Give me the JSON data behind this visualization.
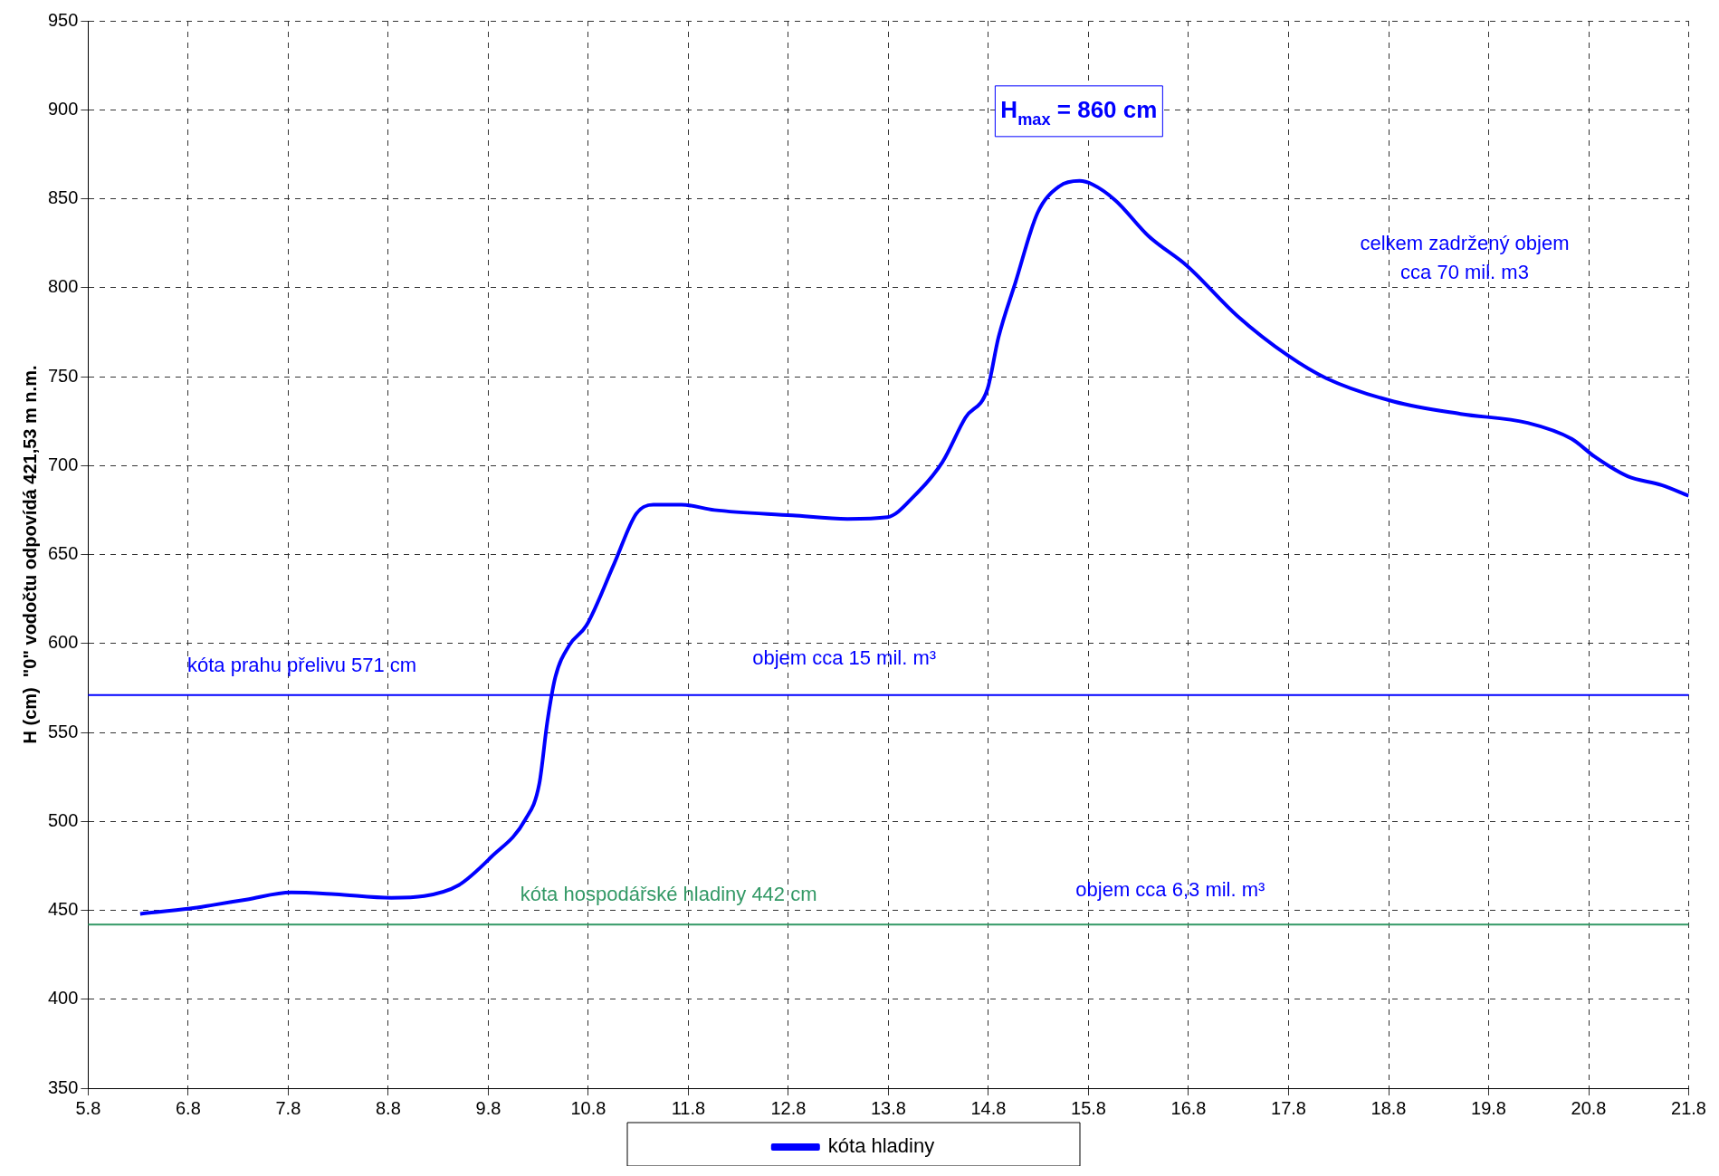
{
  "chart_data": {
    "type": "line",
    "ylabel": "H (cm)  \"0\" vodočtu odpovídá 421,53 m n.m.",
    "x": [
      "--08-05T12:29",
      "--08-06T00:29",
      "--08-06T06:00",
      "--08-06T13:55",
      "--08-07T00:43",
      "--08-07T11:17",
      "--08-08T00:43",
      "--08-08T08:38",
      "--08-08T16:48",
      "--08-09T00:43",
      "--08-09T08:53",
      "--08-09T12:14",
      "--08-09T14:10",
      "--08-09T16:05",
      "--08-09T19:26",
      "--08-09T23:31",
      "--08-10T06:14",
      "--08-10T11:31",
      "--08-10T15:36",
      "--08-10T22:19",
      "--08-11T06:14",
      "--08-12T00:58",
      "--08-12T14:10",
      "--08-12T23:46",
      "--08-13T06:14",
      "--08-13T12:58",
      "--08-13T18:29",
      "--08-13T23:46",
      "--08-14T02:24",
      "--08-14T06:29",
      "--08-14T11:46",
      "--08-14T17:02",
      "--08-14T21:50",
      "--08-15T00:58",
      "--08-15T06:29",
      "--08-15T14:24",
      "--08-15T23:46",
      "--08-16T11:46",
      "--08-16T23:46",
      "--08-17T09:07",
      "--08-18T01:12",
      "--08-18T17:17",
      "--08-19T09:22",
      "--08-19T19:55",
      "--08-20T01:26",
      "--08-20T09:22",
      "--08-20T17:31",
      "--08-21"
    ],
    "series": [
      {
        "name": "kóta hladiny",
        "color": "#0000ff",
        "values": [
          448,
          451,
          453,
          456,
          460,
          459,
          457,
          458,
          464,
          480,
          501,
          521,
          556,
          581,
          599,
          610,
          645,
          673,
          678,
          678,
          675,
          672,
          670,
          671,
          683,
          702,
          727,
          743,
          772,
          803,
          842,
          857,
          860,
          858,
          849,
          829,
          812,
          784,
          762,
          749,
          736,
          729,
          724,
          715,
          705,
          694,
          689,
          683
        ]
      }
    ],
    "xlim": [
      "--08-05",
      "--08-21"
    ],
    "xticks": [
      {
        "value": "--08-05",
        "label": "5.8"
      },
      {
        "value": "--08-06",
        "label": "6.8"
      },
      {
        "value": "--08-07",
        "label": "7.8"
      },
      {
        "value": "--08-08",
        "label": "8.8"
      },
      {
        "value": "--08-09",
        "label": "9.8"
      },
      {
        "value": "--08-10",
        "label": "10.8"
      },
      {
        "value": "--08-11",
        "label": "11.8"
      },
      {
        "value": "--08-12",
        "label": "12.8"
      },
      {
        "value": "--08-13",
        "label": "13.8"
      },
      {
        "value": "--08-14",
        "label": "14.8"
      },
      {
        "value": "--08-15",
        "label": "15.8"
      },
      {
        "value": "--08-16",
        "label": "16.8"
      },
      {
        "value": "--08-17",
        "label": "17.8"
      },
      {
        "value": "--08-18",
        "label": "18.8"
      },
      {
        "value": "--08-19",
        "label": "19.8"
      },
      {
        "value": "--08-20",
        "label": "20.8"
      },
      {
        "value": "--08-21",
        "label": "21.8"
      }
    ],
    "ylim": [
      350,
      950
    ],
    "yticks": [
      350,
      400,
      450,
      500,
      550,
      600,
      650,
      700,
      750,
      800,
      850,
      900,
      950
    ],
    "ref_lines": [
      {
        "axis": "y",
        "value": 571,
        "label": "kóta prahu přelivu 571 cm",
        "color": "#0000ff"
      },
      {
        "axis": "y",
        "value": 442,
        "label": "kóta hospodářské hladiny 442 cm",
        "color": "#339966"
      }
    ],
    "annotations": [
      "H$_{max}$ = 860 cm",
      "objem cca 15 mil. m³",
      "objem cca 6,3 mil. m³",
      "celkem zadržený objem\ncca 70 mil. m3"
    ],
    "grid": true,
    "legend": "bottom",
    "marker": "none",
    "line_style": "solid"
  }
}
